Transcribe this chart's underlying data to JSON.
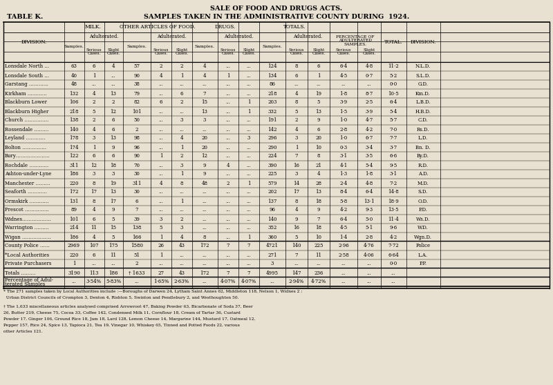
{
  "title1": "SALE OF FOOD AND DRUGS ACTS.",
  "title2": "SAMPLES TAKEN IN THE ADMINISTRATIVE COUNTY DURING  1924.",
  "table_label": "TABLE K.",
  "bg_color": "#e8e0d0",
  "rows": [
    [
      "Lonsdale North ...",
      "63",
      "6",
      "4",
      "57",
      "2",
      "2",
      "4",
      "...",
      "...",
      "124",
      "8",
      "6",
      "6·4",
      "4·8",
      "11·2",
      "N.L.D."
    ],
    [
      "Lonsdale South ...",
      "40",
      "1",
      "...",
      "90",
      "4",
      "1",
      "4",
      "1",
      "...",
      "134",
      "6",
      "1",
      "4·5",
      "0·7",
      "5·2",
      "S.L.D."
    ],
    [
      "Garstang …………",
      "48",
      "...",
      "...",
      "38",
      "...",
      "...",
      "...",
      "...",
      "...",
      "86",
      "...",
      "...",
      "...",
      "...",
      "0·0",
      "G.D."
    ],
    [
      "Kirkham …………",
      "132",
      "4",
      "13",
      "79",
      "...",
      "6",
      "7",
      "...",
      "...",
      "218",
      "4",
      "19",
      "1·8",
      "8·7",
      "10·5",
      "Km.D."
    ],
    [
      "Blackburn Lower",
      "106",
      "2",
      "2",
      "82",
      "6",
      "2",
      "15",
      "...",
      "1",
      "203",
      "8",
      "5",
      "3·9",
      "2·5",
      "6·4",
      "L.B.D."
    ],
    [
      "Blackburn Higher",
      "218",
      "5",
      "12",
      "101",
      "...",
      "...",
      "13",
      "...",
      "1",
      "332",
      "5",
      "13",
      "1·5",
      "3·9",
      "5·4",
      "H.B.D."
    ],
    [
      "Church ……………",
      "138",
      "2",
      "6",
      "50",
      "...",
      "3",
      "3",
      "...",
      "...",
      "191",
      "2",
      "9",
      "1·0",
      "4·7",
      "5·7",
      "C.D."
    ],
    [
      "Rossendale ………",
      "140",
      "4",
      "6",
      "2",
      "...",
      "...",
      "...",
      "...",
      "...",
      "142",
      "4",
      "6",
      "2·8",
      "4·2",
      "7·0",
      "Rs.D."
    ],
    [
      "Leyland …………",
      "178",
      "3",
      "13",
      "98",
      "...",
      "4",
      "20",
      "...",
      "3",
      "296",
      "3",
      "20",
      "1·0",
      "6·7",
      "7·7",
      "L.D."
    ],
    [
      "Bolton ……………",
      "174",
      "1",
      "9",
      "96",
      "...",
      "1",
      "20",
      "...",
      "...",
      "290",
      "1",
      "10",
      "0·3",
      "3·4",
      "3·7",
      "Bn. D."
    ],
    [
      "Bury…………………",
      "122",
      "6",
      "6",
      "90",
      "1",
      "2",
      "12",
      "...",
      "...",
      "224",
      "7",
      "8",
      "3·1",
      "3·5",
      "6·6",
      "By.D."
    ],
    [
      "Rochdale …………",
      "311",
      "12",
      "18",
      "70",
      "...",
      "3",
      "9",
      "4",
      "...",
      "390",
      "16",
      "21",
      "4·1",
      "5·4",
      "9·5",
      "R.D."
    ],
    [
      "Ashton-under-Lyne",
      "186",
      "3",
      "3",
      "30",
      "...",
      "1",
      "9",
      "...",
      "...",
      "225",
      "3",
      "4",
      "1·3",
      "1·8",
      "3·1",
      "A.D."
    ],
    [
      "Manchester ………",
      "220",
      "8",
      "19",
      "311",
      "4",
      "8",
      "48",
      "2",
      "1",
      "579",
      "14",
      "28",
      "2·4",
      "4·8",
      "7·2",
      "M.D."
    ],
    [
      "Seaforth …………",
      "172",
      "17",
      "13",
      "30",
      "...",
      "...",
      "...",
      "...",
      "...",
      "202",
      "17",
      "13",
      "8·4",
      "6·4",
      "14·8",
      "S.D."
    ],
    [
      "Ormskirk …………",
      "131",
      "8",
      "17",
      "6",
      "...",
      "1",
      "...",
      "...",
      "...",
      "137",
      "8",
      "18",
      "5·8",
      "13·1",
      "18·9",
      "O.D."
    ],
    [
      "Prescot ……………",
      "89",
      "4",
      "9",
      "7",
      "...",
      "...",
      "...",
      "...",
      "...",
      "96",
      "4",
      "9",
      "4·2",
      "9·3",
      "13·5",
      "P.D."
    ],
    [
      "Widnes………………",
      "101",
      "6",
      "5",
      "39",
      "3",
      "2",
      "...",
      "...",
      "...",
      "140",
      "9",
      "7",
      "6·4",
      "5·0",
      "11·4",
      "Ws.D."
    ],
    [
      "Warrington ………",
      "214",
      "11",
      "15",
      "138",
      "5",
      "3",
      "...",
      "...",
      "...",
      "352",
      "16",
      "18",
      "4·5",
      "5·1",
      "9·6",
      "W.D."
    ],
    [
      "Wigan ………………",
      "186",
      "4",
      "5",
      "166",
      "1",
      "4",
      "8",
      "...",
      "1",
      "360",
      "5",
      "10",
      "1·4",
      "2·8",
      "4·2",
      "Wgn.D."
    ],
    [
      "County Police ……",
      "2969",
      "107",
      "175",
      "1580",
      "26",
      "43",
      "172",
      "7",
      "7",
      "4721",
      "140",
      "225",
      "2·96",
      "4·76",
      "7·72",
      "Police"
    ],
    [
      "*Local Authorities",
      "220",
      "6",
      "11",
      "51",
      "1",
      "...",
      "...",
      "...",
      "...",
      "271",
      "7",
      "11",
      "2·58",
      "4·06",
      "6·64",
      "L.A."
    ],
    [
      "Private Purchasers",
      "1",
      "...",
      "...",
      "2",
      "...",
      "...",
      "...",
      "...",
      "...",
      "3",
      "...",
      "...",
      "...",
      "...",
      "0·0",
      "P.P."
    ],
    [
      "Totals ………",
      "3190",
      "113",
      "186",
      "† 1633",
      "27",
      "43",
      "172",
      "7",
      "7",
      "4995",
      "147",
      "236",
      "...",
      "...",
      "...",
      ""
    ],
    [
      "Percentage of Adul-|terated Samples",
      "...",
      "3·54%",
      "5·83%",
      "...",
      "1·65%",
      "2·63%",
      "...",
      "4·07%",
      "4·07%",
      "...",
      "2·94%",
      "4·72%",
      "...",
      "...",
      "...",
      ""
    ]
  ],
  "footnote1": "* The 271 samples taken by Local Authorities include :—Boroughs of Darwen 24, Lytham Saint Annes 62, Middleton 118, Nelson 1, Widnes 2 ; Urban District Councils of Crompton 3, Denton 4, Rishton 5, Swinton and Pendlebury 2, and Westhoughton 50.",
  "footnote2": "† The 1,633 miscellaneous articles analysed comprised Arrowroot 47, Baking Powder 63, Bicarbonate of Soda 37, Beer 26, Butter 219, Cheese 75, Cocoa 33, Coffee 142, Condensed Milk 11, Cornflour 18, Cream of Tartar 36, Custard Powder 17, Ginger 106, Ground Rice 18, Jam 18, Lard 128, Lemon Cheese 14, Margarine 144, Mustard 17, Oatmeal 12, Pepper 157, Rice 24, Spice 13, Tapioca 21, Tea 19, Vinegar 10, Whiskey 65, Tinned and Potted Foods 22, various other Articles 121."
}
